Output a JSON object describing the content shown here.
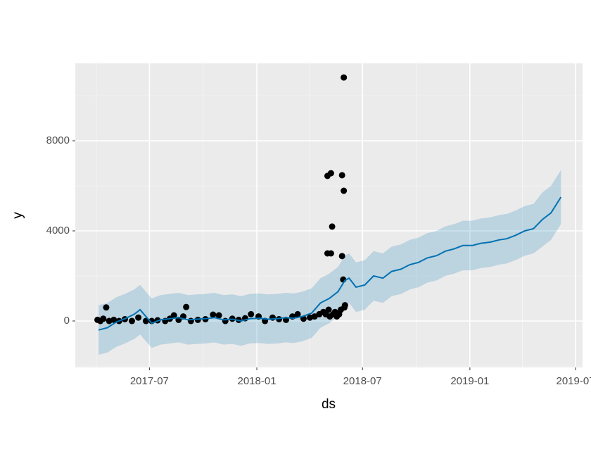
{
  "chart_data": {
    "type": "forecast",
    "x_label": "ds",
    "y_label": "y",
    "xlim": [
      "2017-02-24",
      "2019-07-13"
    ],
    "xticks": [
      {
        "value": "2017-07-01",
        "label": "2017-07"
      },
      {
        "value": "2018-01-01",
        "label": "2018-01"
      },
      {
        "value": "2018-07-01",
        "label": "2018-07"
      },
      {
        "value": "2019-01-01",
        "label": "2019-01"
      },
      {
        "value": "2019-07-01",
        "label": "2019-07"
      }
    ],
    "x_minor_ticks": [
      "2017-04-01",
      "2017-10-01",
      "2018-04-01",
      "2018-10-01",
      "2019-04-01"
    ],
    "ylim": [
      -2062,
      11437
    ],
    "yticks": [
      0,
      4000,
      8000
    ],
    "y_minor_ticks": [
      -2000,
      2000,
      6000,
      10000
    ],
    "grid": true,
    "points": {
      "color": "#000000",
      "x": [
        "2017-04-03",
        "2017-04-08",
        "2017-04-13",
        "2017-04-18",
        "2017-04-23",
        "2017-05-01",
        "2017-05-10",
        "2017-05-20",
        "2017-06-01",
        "2017-06-12",
        "2017-06-25",
        "2017-07-05",
        "2017-07-15",
        "2017-07-28",
        "2017-08-05",
        "2017-08-12",
        "2017-08-20",
        "2017-08-28",
        "2017-09-02",
        "2017-09-10",
        "2017-09-22",
        "2017-10-05",
        "2017-10-18",
        "2017-10-28",
        "2017-11-08",
        "2017-11-20",
        "2017-12-01",
        "2017-12-12",
        "2017-12-22",
        "2018-01-04",
        "2018-01-15",
        "2018-01-28",
        "2018-02-08",
        "2018-02-20",
        "2018-03-03",
        "2018-03-12",
        "2018-03-22",
        "2018-04-02",
        "2018-04-10",
        "2018-04-18",
        "2018-04-25",
        "2018-04-29",
        "2018-05-02",
        "2018-05-02",
        "2018-05-04",
        "2018-05-06",
        "2018-05-08",
        "2018-05-08",
        "2018-05-10",
        "2018-05-12",
        "2018-05-15",
        "2018-05-18",
        "2018-05-22",
        "2018-05-25",
        "2018-05-27",
        "2018-05-27",
        "2018-05-29",
        "2018-05-30",
        "2018-05-30",
        "2018-05-31",
        "2018-06-01"
      ],
      "values": [
        50,
        0,
        100,
        600,
        0,
        50,
        0,
        80,
        0,
        150,
        0,
        0,
        30,
        0,
        100,
        250,
        50,
        200,
        620,
        0,
        50,
        80,
        280,
        250,
        0,
        100,
        50,
        120,
        300,
        200,
        0,
        150,
        80,
        50,
        200,
        300,
        100,
        150,
        200,
        300,
        400,
        300,
        6440,
        3000,
        500,
        200,
        6560,
        3000,
        4190,
        300,
        400,
        200,
        300,
        500,
        6470,
        2880,
        1840,
        10810,
        5780,
        600,
        700
      ]
    },
    "forecast": {
      "color": "#0072B2",
      "band_color": "#0072B2",
      "x": [
        "2017-04-05",
        "2017-04-20",
        "2017-05-05",
        "2017-05-20",
        "2017-06-05",
        "2017-06-15",
        "2017-06-25",
        "2017-07-05",
        "2017-07-20",
        "2017-08-05",
        "2017-08-20",
        "2017-09-05",
        "2017-09-20",
        "2017-10-05",
        "2017-10-20",
        "2017-11-05",
        "2017-11-20",
        "2017-12-05",
        "2017-12-20",
        "2018-01-05",
        "2018-01-20",
        "2018-02-05",
        "2018-02-20",
        "2018-03-05",
        "2018-03-20",
        "2018-04-05",
        "2018-04-20",
        "2018-05-05",
        "2018-05-20",
        "2018-06-01",
        "2018-06-08",
        "2018-06-20",
        "2018-07-05",
        "2018-07-20",
        "2018-08-05",
        "2018-08-20",
        "2018-09-05",
        "2018-09-20",
        "2018-10-05",
        "2018-10-20",
        "2018-11-05",
        "2018-11-20",
        "2018-12-05",
        "2018-12-20",
        "2019-01-05",
        "2019-01-20",
        "2019-02-05",
        "2019-02-20",
        "2019-03-05",
        "2019-03-20",
        "2019-04-05",
        "2019-04-20",
        "2019-05-05",
        "2019-05-20",
        "2019-06-06"
      ],
      "values": [
        -400,
        -300,
        -50,
        100,
        300,
        500,
        200,
        -100,
        50,
        100,
        150,
        50,
        80,
        100,
        150,
        50,
        80,
        0,
        100,
        120,
        80,
        100,
        150,
        120,
        200,
        350,
        800,
        1000,
        1300,
        1800,
        1900,
        1500,
        1600,
        2000,
        1900,
        2200,
        2300,
        2500,
        2600,
        2800,
        2900,
        3100,
        3200,
        3350,
        3350,
        3450,
        3500,
        3600,
        3650,
        3800,
        4000,
        4100,
        4500,
        4800,
        5500
      ],
      "lower": [
        -1500,
        -1400,
        -1150,
        -1000,
        -800,
        -600,
        -900,
        -1200,
        -1050,
        -1000,
        -950,
        -1050,
        -1020,
        -1000,
        -950,
        -1050,
        -1020,
        -1100,
        -1000,
        -980,
        -1020,
        -1000,
        -950,
        -980,
        -900,
        -750,
        -300,
        -100,
        200,
        700,
        800,
        400,
        500,
        900,
        800,
        1100,
        1200,
        1400,
        1500,
        1700,
        1800,
        2000,
        2100,
        2250,
        2250,
        2350,
        2400,
        2500,
        2550,
        2700,
        2900,
        3000,
        3300,
        3600,
        4300
      ],
      "upper": [
        700,
        800,
        1050,
        1200,
        1400,
        1600,
        1300,
        1000,
        1150,
        1200,
        1250,
        1150,
        1180,
        1200,
        1250,
        1150,
        1180,
        1100,
        1200,
        1220,
        1180,
        1200,
        1250,
        1220,
        1300,
        1450,
        1900,
        2100,
        2400,
        2900,
        3000,
        2600,
        2700,
        3100,
        3000,
        3300,
        3400,
        3600,
        3700,
        3900,
        4000,
        4200,
        4300,
        4450,
        4450,
        4550,
        4600,
        4700,
        4750,
        4900,
        5100,
        5200,
        5700,
        6000,
        6700
      ]
    }
  }
}
